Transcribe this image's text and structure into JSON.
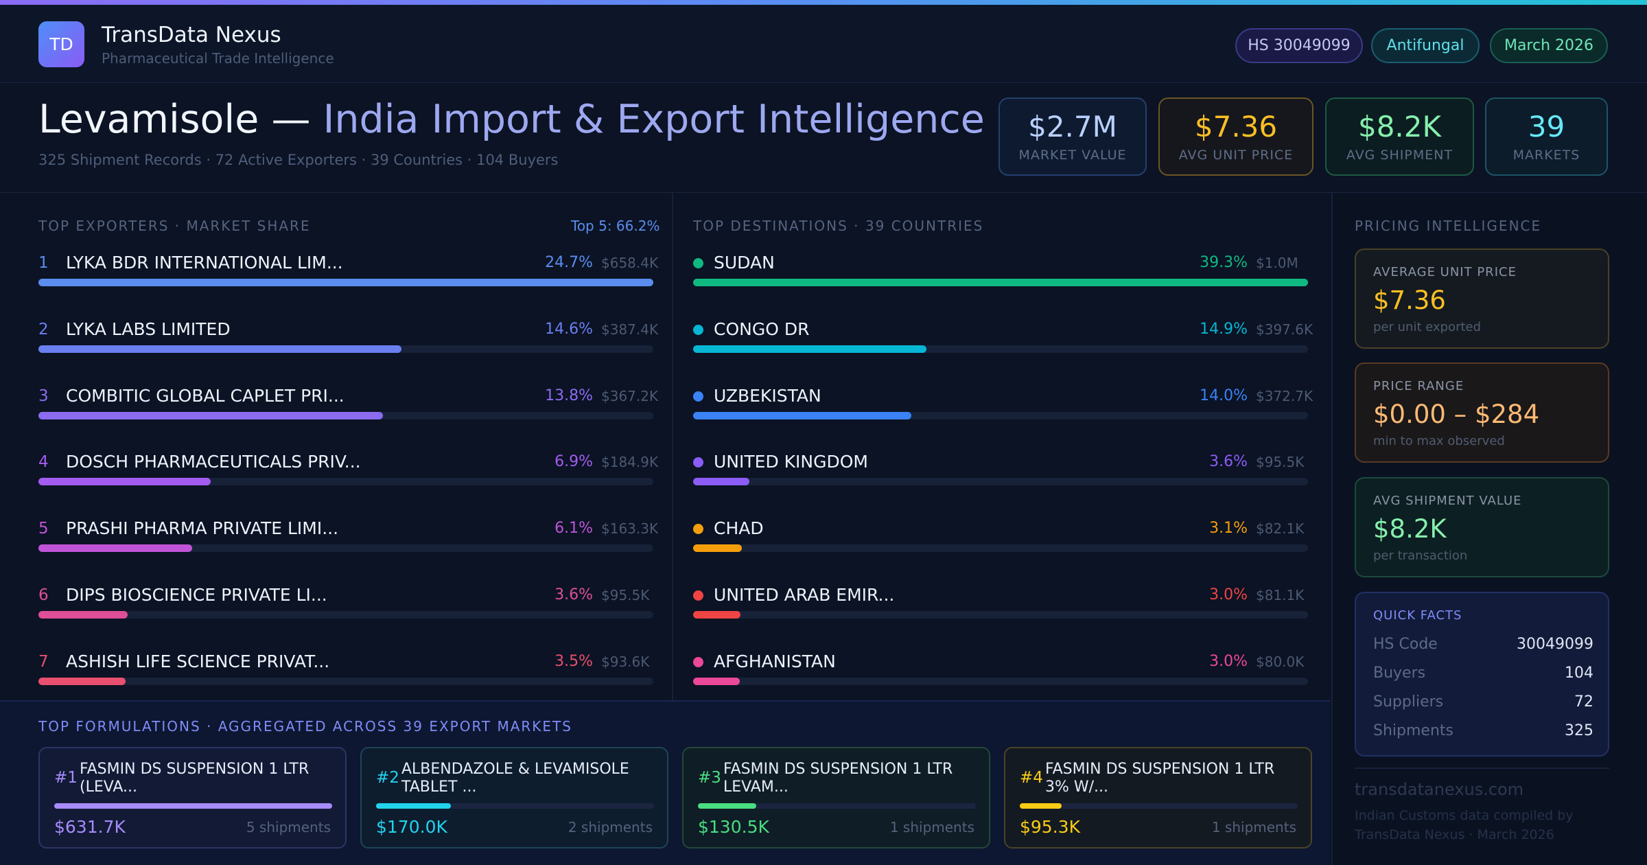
{
  "header": {
    "logo": "TD",
    "brand": "TransData Nexus",
    "tagline": "Pharmaceutical Trade Intelligence",
    "pills": {
      "hs": "HS 30049099",
      "category": "Antifungal",
      "period": "March 2026"
    }
  },
  "title": {
    "product": "Levamisole —",
    "rest": "India Import & Export Intelligence",
    "subtitle": "325 Shipment Records · 72 Active Exporters · 39 Countries · 104 Buyers"
  },
  "kpis": [
    {
      "value": "$2.7M",
      "label": "MARKET VALUE"
    },
    {
      "value": "$7.36",
      "label": "AVG UNIT PRICE"
    },
    {
      "value": "$8.2K",
      "label": "AVG SHIPMENT"
    },
    {
      "value": "39",
      "label": "MARKETS"
    }
  ],
  "exporters": {
    "heading": "TOP EXPORTERS · MARKET SHARE",
    "top5": "Top 5: 66.2%",
    "items": [
      {
        "rank": "1",
        "name": "LYKA BDR INTERNATIONAL LIM...",
        "pct": "24.7%",
        "amount": "$658.4K",
        "share": 100,
        "color": "#5b8def"
      },
      {
        "rank": "2",
        "name": "LYKA LABS LIMITED",
        "pct": "14.6%",
        "amount": "$387.4K",
        "share": 59,
        "color": "#6b7ff0"
      },
      {
        "rank": "3",
        "name": "COMBITIC GLOBAL CAPLET PRI...",
        "pct": "13.8%",
        "amount": "$367.2K",
        "share": 56,
        "color": "#8b6cf0"
      },
      {
        "rank": "4",
        "name": "DOSCH PHARMACEUTICALS PRIV...",
        "pct": "6.9%",
        "amount": "$184.9K",
        "share": 28,
        "color": "#a45cf0"
      },
      {
        "rank": "5",
        "name": "PRASHI PHARMA PRIVATE LIMI...",
        "pct": "6.1%",
        "amount": "$163.3K",
        "share": 25,
        "color": "#c054d8"
      },
      {
        "rank": "6",
        "name": "DIPS BIOSCIENCE PRIVATE LI...",
        "pct": "3.6%",
        "amount": "$95.5K",
        "share": 14.5,
        "color": "#de4f98"
      },
      {
        "rank": "7",
        "name": "ASHISH LIFE SCIENCE PRIVAT...",
        "pct": "3.5%",
        "amount": "$93.6K",
        "share": 14.2,
        "color": "#e94f6e"
      }
    ]
  },
  "destinations": {
    "heading": "TOP DESTINATIONS · 39 COUNTRIES",
    "items": [
      {
        "name": "SUDAN",
        "pct": "39.3%",
        "amount": "$1.0M",
        "share": 100,
        "color": "#10b981"
      },
      {
        "name": "CONGO DR",
        "pct": "14.9%",
        "amount": "$397.6K",
        "share": 38,
        "color": "#06b6d4"
      },
      {
        "name": "UZBEKISTAN",
        "pct": "14.0%",
        "amount": "$372.7K",
        "share": 35.5,
        "color": "#3b82f6"
      },
      {
        "name": "UNITED KINGDOM",
        "pct": "3.6%",
        "amount": "$95.5K",
        "share": 9.2,
        "color": "#8b5cf6"
      },
      {
        "name": "CHAD",
        "pct": "3.1%",
        "amount": "$82.1K",
        "share": 7.9,
        "color": "#f59e0b"
      },
      {
        "name": "UNITED ARAB EMIR...",
        "pct": "3.0%",
        "amount": "$81.1K",
        "share": 7.7,
        "color": "#ef4444"
      },
      {
        "name": "AFGHANISTAN",
        "pct": "3.0%",
        "amount": "$80.0K",
        "share": 7.6,
        "color": "#ec4899"
      }
    ]
  },
  "pricing": {
    "heading": "PRICING INTELLIGENCE",
    "avg_unit": {
      "label": "AVERAGE UNIT PRICE",
      "value": "$7.36",
      "sub": "per unit exported"
    },
    "range": {
      "label": "PRICE RANGE",
      "value": "$0.00 – $284",
      "sub": "min to max observed"
    },
    "avg_shipment": {
      "label": "AVG SHIPMENT VALUE",
      "value": "$8.2K",
      "sub": "per transaction"
    },
    "quick_facts": {
      "title": "QUICK FACTS",
      "rows": [
        {
          "key": "HS Code",
          "value": "30049099"
        },
        {
          "key": "Buyers",
          "value": "104"
        },
        {
          "key": "Suppliers",
          "value": "72"
        },
        {
          "key": "Shipments",
          "value": "325"
        }
      ]
    },
    "site": "transdatanexus.com",
    "credit": "Indian Customs data compiled by TransData Nexus · March 2026"
  },
  "formulations": {
    "heading": "TOP FORMULATIONS · AGGREGATED ACROSS 39 EXPORT MARKETS",
    "items": [
      {
        "rank": "#1",
        "name": "FASMIN DS SUSPENSION 1 LTR (LEVA...",
        "value": "$631.7K",
        "shipments": "5 shipments",
        "share": 100,
        "color": "#a78bfa"
      },
      {
        "rank": "#2",
        "name": "ALBENDAZOLE & LEVAMISOLE TABLET ...",
        "value": "$170.0K",
        "shipments": "2 shipments",
        "share": 27,
        "color": "#22d3ee"
      },
      {
        "rank": "#3",
        "name": "FASMIN DS SUSPENSION 1 LTR LEVAM...",
        "value": "$130.5K",
        "shipments": "1 shipments",
        "share": 21,
        "color": "#4ade80"
      },
      {
        "rank": "#4",
        "name": "FASMIN DS SUSPENSION 1 LTR 3% W/...",
        "value": "$95.3K",
        "shipments": "1 shipments",
        "share": 15,
        "color": "#facc15"
      }
    ]
  }
}
